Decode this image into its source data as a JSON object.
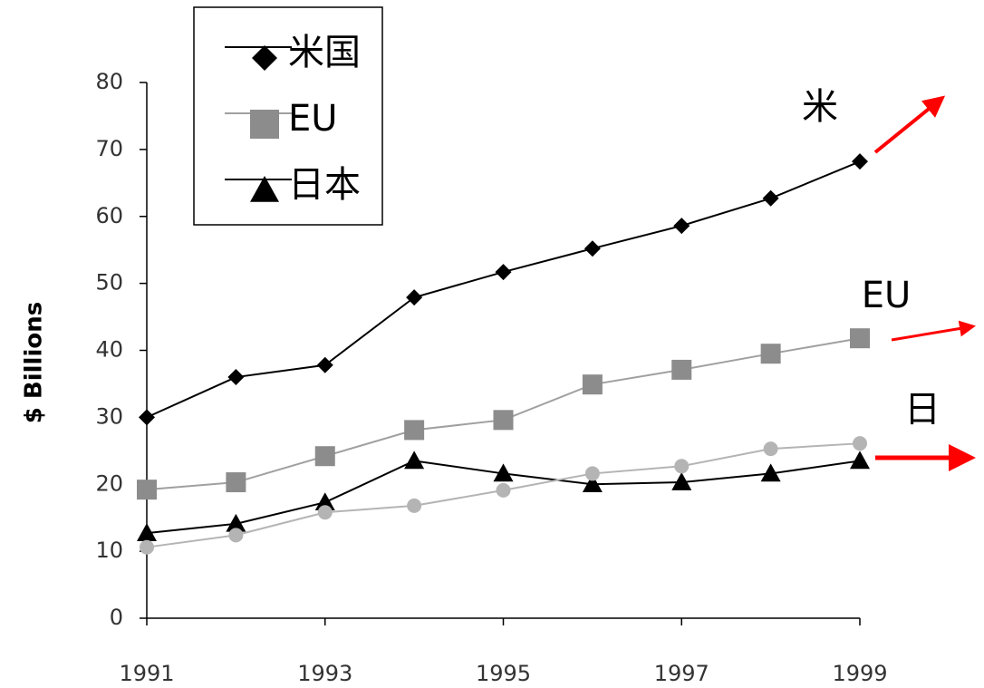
{
  "chart_data": {
    "type": "line",
    "y_label": "$ Billions",
    "x": [
      1991,
      1992,
      1993,
      1994,
      1995,
      1996,
      1997,
      1998,
      1999
    ],
    "xlim": [
      1991,
      1999
    ],
    "xticks": [
      1991,
      1993,
      1995,
      1997,
      1999
    ],
    "ylim": [
      0,
      80
    ],
    "yticks": [
      0,
      10,
      20,
      30,
      40,
      50,
      60,
      70,
      80
    ],
    "series": [
      {
        "name": "米国",
        "color": "#000000",
        "marker": "diamond",
        "values": [
          30,
          36,
          37.8,
          47.9,
          51.7,
          55.2,
          58.6,
          62.7,
          68.2
        ]
      },
      {
        "name": "EU",
        "color": "#8c8c8c",
        "marker": "square",
        "values": [
          19.2,
          20.3,
          24.2,
          28.1,
          29.6,
          34.9,
          37.1,
          39.5,
          41.8
        ]
      },
      {
        "name": "日本",
        "color": "#000000",
        "marker": "triangle",
        "values": [
          12.7,
          14.1,
          17.3,
          23.5,
          21.6,
          20.0,
          20.3,
          21.6,
          23.5
        ]
      },
      {
        "color": "#b4b4b4",
        "marker": "circle",
        "values": [
          10.6,
          12.4,
          15.8,
          16.8,
          19.1,
          21.6,
          22.7,
          25.3,
          26.1
        ]
      }
    ],
    "annotations": [
      "米",
      "EU",
      "日"
    ]
  }
}
